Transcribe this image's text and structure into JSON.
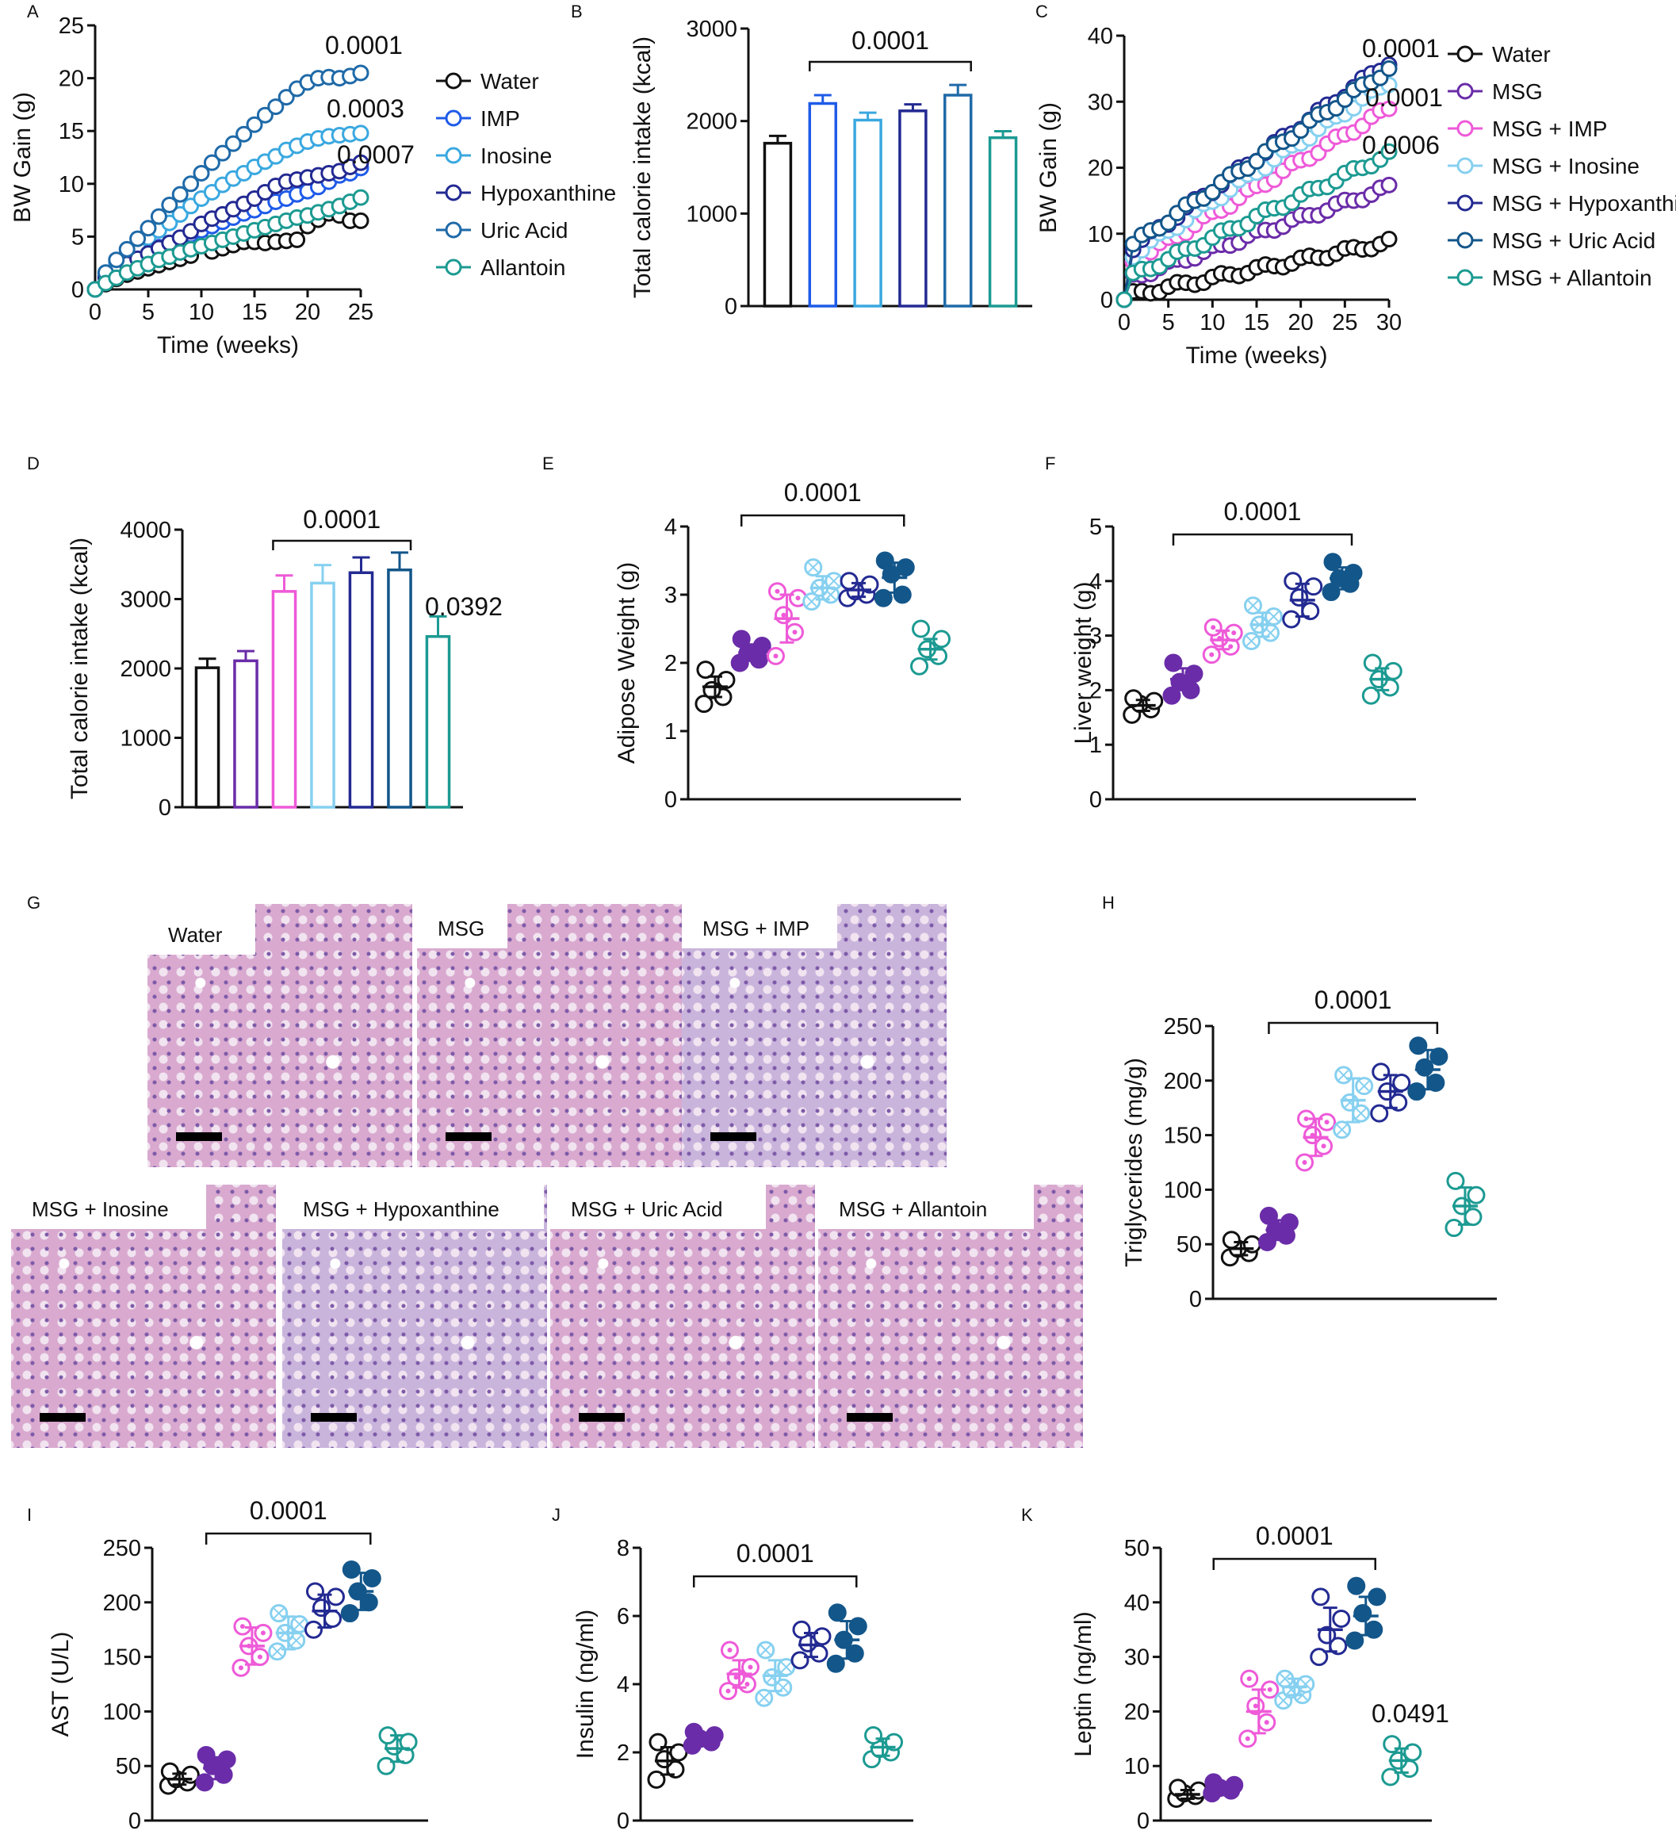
{
  "colors": {
    "water": "#111111",
    "imp": "#1f5be8",
    "inosine": "#3aa8e0",
    "hypoxanthine": "#232a92",
    "uric_acid": "#1f6aa8",
    "allantoin": "#1c9a92",
    "msg": "#6a2ca8",
    "msg_imp": "#ee5ad8",
    "msg_inosine": "#86d0f0",
    "msg_hypoxanthine": "#232a92",
    "msg_uric_acid": "#13568a",
    "msg_allantoin": "#1c9a92"
  },
  "panel_letters": [
    "A",
    "B",
    "C",
    "D",
    "E",
    "F",
    "G",
    "H",
    "I",
    "J",
    "K"
  ],
  "histology": {
    "panel": "G",
    "images": [
      {
        "label": "Water",
        "hue": "pink"
      },
      {
        "label": "MSG",
        "hue": "pink"
      },
      {
        "label": "MSG + IMP",
        "hue": "lavender"
      },
      {
        "label": "MSG + Inosine",
        "hue": "pink"
      },
      {
        "label": "MSG + Hypoxanthine",
        "hue": "lavender"
      },
      {
        "label": "MSG + Uric Acid",
        "hue": "pink"
      },
      {
        "label": "MSG + Allantoin",
        "hue": "pink"
      }
    ]
  },
  "chart_data": [
    {
      "panel": "A",
      "type": "line",
      "xlabel": "Time (weeks)",
      "ylabel": "BW Gain (g)",
      "xlim": [
        0,
        25
      ],
      "ylim": [
        0,
        25
      ],
      "xticks": [
        0,
        5,
        10,
        15,
        20,
        25
      ],
      "yticks": [
        0,
        5,
        10,
        15,
        20,
        25
      ],
      "x": [
        0,
        1,
        2,
        3,
        4,
        5,
        6,
        7,
        8,
        9,
        10,
        11,
        12,
        13,
        14,
        15,
        16,
        17,
        18,
        19,
        20,
        21,
        22,
        23,
        24,
        25
      ],
      "series": [
        {
          "name": "Water",
          "color_key": "water",
          "values": [
            0,
            0.5,
            1.0,
            1.4,
            1.7,
            2.0,
            2.3,
            2.6,
            2.9,
            3.2,
            4.6,
            3.6,
            3.9,
            4.2,
            4.5,
            4.5,
            4.4,
            4.5,
            4.6,
            4.7,
            6.0,
            6.6,
            7.2,
            7.0,
            6.5,
            6.5
          ]
        },
        {
          "name": "IMP",
          "color_key": "imp",
          "values": [
            0,
            1.2,
            2.0,
            2.6,
            3.1,
            3.5,
            4.0,
            4.4,
            4.8,
            5.2,
            5.6,
            6.0,
            6.4,
            6.8,
            7.2,
            7.5,
            7.9,
            8.3,
            8.6,
            9.0,
            9.3,
            9.7,
            10.2,
            10.8,
            11.0,
            11.5
          ]
        },
        {
          "name": "Inosine",
          "color_key": "inosine",
          "values": [
            0,
            1.5,
            2.4,
            3.3,
            4.1,
            4.9,
            5.6,
            6.3,
            7.1,
            7.9,
            8.6,
            9.2,
            9.9,
            10.5,
            11.0,
            11.6,
            12.1,
            12.6,
            13.2,
            13.6,
            14.0,
            14.3,
            14.5,
            14.6,
            14.7,
            14.8
          ]
        },
        {
          "name": "Hypoxanthine",
          "color_key": "hypoxanthine",
          "values": [
            0,
            1.1,
            1.8,
            2.4,
            2.9,
            3.4,
            3.9,
            4.4,
            4.9,
            5.5,
            6.2,
            6.7,
            7.1,
            7.6,
            8.1,
            8.6,
            9.2,
            9.8,
            10.2,
            10.4,
            10.6,
            10.8,
            11.0,
            11.2,
            11.6,
            12.0
          ]
        },
        {
          "name": "Uric Acid",
          "color_key": "uric_acid",
          "values": [
            0,
            1.6,
            2.8,
            3.8,
            4.8,
            5.8,
            6.9,
            8.0,
            9.0,
            10.0,
            11.0,
            12.0,
            12.9,
            13.8,
            14.7,
            15.6,
            16.5,
            17.3,
            18.2,
            19.0,
            19.6,
            20.0,
            20.1,
            20.0,
            20.2,
            20.5
          ]
        },
        {
          "name": "Allantoin",
          "color_key": "allantoin",
          "values": [
            0,
            0.6,
            1.1,
            1.6,
            2.0,
            2.4,
            2.8,
            3.1,
            3.5,
            3.8,
            4.1,
            4.4,
            4.7,
            5.0,
            5.3,
            5.6,
            5.9,
            6.2,
            6.5,
            6.8,
            7.0,
            7.3,
            7.6,
            7.9,
            8.3,
            8.7
          ]
        }
      ],
      "annotations": [
        "0.0001",
        "0.0003",
        "0.0007"
      ]
    },
    {
      "panel": "B",
      "type": "bar",
      "ylabel": "Total calorie intake (kcal)",
      "ylim": [
        0,
        3000
      ],
      "yticks": [
        0,
        1000,
        2000,
        3000
      ],
      "categories": [
        "Water",
        "IMP",
        "Inosine",
        "Hypoxanthine",
        "Uric Acid",
        "Allantoin"
      ],
      "values": [
        1760,
        2190,
        2010,
        2110,
        2280,
        1820
      ],
      "errors": [
        80,
        90,
        80,
        70,
        110,
        70
      ],
      "bracket": {
        "from": 1,
        "to": 4,
        "label": "0.0001"
      }
    },
    {
      "panel": "C",
      "type": "line",
      "xlabel": "Time (weeks)",
      "ylabel": "BW Gain (g)",
      "xlim": [
        0,
        30
      ],
      "ylim": [
        0,
        40
      ],
      "xticks": [
        0,
        5,
        10,
        15,
        20,
        25,
        30
      ],
      "yticks": [
        0,
        10,
        20,
        30,
        40
      ],
      "series": [
        {
          "name": "Water",
          "color_key": "water",
          "start": 0.5,
          "end": 8.7
        },
        {
          "name": "MSG",
          "color_key": "msg",
          "start": 3,
          "end": 17
        },
        {
          "name": "MSG + IMP",
          "color_key": "msg_imp",
          "start": 5,
          "end": 29
        },
        {
          "name": "MSG + Inosine",
          "color_key": "msg_inosine",
          "start": 6,
          "end": 33
        },
        {
          "name": "MSG + Hypoxanthine",
          "color_key": "msg_hypoxanthine",
          "start": 7,
          "end": 36
        },
        {
          "name": "MSG + Uric Acid",
          "color_key": "msg_uric_acid",
          "start": 7.5,
          "end": 35
        },
        {
          "name": "MSG + Allantoin",
          "color_key": "msg_allantoin",
          "start": 3,
          "end": 22
        }
      ],
      "annotations": [
        "0.0001",
        "0.0001",
        "0.0006"
      ]
    },
    {
      "panel": "D",
      "type": "bar",
      "ylabel": "Total calorie intake (kcal)",
      "ylim": [
        0,
        4000
      ],
      "yticks": [
        0,
        1000,
        2000,
        3000,
        4000
      ],
      "categories": [
        "Water",
        "MSG",
        "MSG + IMP",
        "MSG + Inosine",
        "MSG + Hypoxanthine",
        "MSG + Uric Acid",
        "MSG + Allantoin"
      ],
      "values": [
        2010,
        2110,
        3110,
        3230,
        3380,
        3420,
        2460
      ],
      "errors": [
        130,
        140,
        230,
        260,
        220,
        250,
        290
      ],
      "bracket": {
        "from": 2,
        "to": 5,
        "label": "0.0001"
      },
      "extra_label": "0.0392"
    },
    {
      "panel": "E",
      "type": "scatter",
      "ylabel": "Adipose Weight (g)",
      "ylim": [
        0,
        4
      ],
      "yticks": [
        0,
        1,
        2,
        3,
        4
      ],
      "categories": [
        "Water",
        "MSG",
        "MSG + IMP",
        "MSG + Inosine",
        "MSG + Hypoxanthine",
        "MSG + Uric Acid",
        "MSG + Allantoin"
      ],
      "points": [
        [
          1.4,
          1.5,
          1.6,
          1.75,
          1.9
        ],
        [
          2.0,
          2.05,
          2.15,
          2.25,
          2.35
        ],
        [
          2.1,
          2.45,
          2.7,
          2.95,
          3.05
        ],
        [
          2.9,
          3.0,
          3.1,
          3.2,
          3.4
        ],
        [
          2.95,
          3.0,
          3.05,
          3.15,
          3.2
        ],
        [
          2.95,
          3.0,
          3.3,
          3.4,
          3.5
        ],
        [
          1.95,
          2.1,
          2.2,
          2.35,
          2.5
        ]
      ],
      "means": [
        1.65,
        2.15,
        2.65,
        3.1,
        3.07,
        3.25,
        2.2
      ],
      "sds": [
        0.15,
        0.12,
        0.35,
        0.17,
        0.1,
        0.22,
        0.15
      ],
      "bracket": {
        "from": 1,
        "to": 5,
        "label": "0.0001"
      }
    },
    {
      "panel": "F",
      "type": "scatter",
      "ylabel": "Liver weight (g)",
      "ylim": [
        0,
        5
      ],
      "yticks": [
        0,
        1,
        2,
        3,
        4,
        5
      ],
      "categories": [
        "Water",
        "MSG",
        "MSG + IMP",
        "MSG + Inosine",
        "MSG + Hypoxanthine",
        "MSG + Uric Acid",
        "MSG + Allantoin"
      ],
      "points": [
        [
          1.55,
          1.65,
          1.75,
          1.8,
          1.85
        ],
        [
          1.9,
          2.0,
          2.15,
          2.3,
          2.5
        ],
        [
          2.65,
          2.8,
          2.95,
          3.05,
          3.15
        ],
        [
          2.9,
          3.05,
          3.2,
          3.35,
          3.55
        ],
        [
          3.3,
          3.45,
          3.7,
          3.9,
          4.0
        ],
        [
          3.8,
          3.95,
          4.05,
          4.15,
          4.35
        ],
        [
          1.9,
          2.05,
          2.2,
          2.35,
          2.5
        ]
      ],
      "means": [
        1.72,
        2.2,
        2.92,
        3.2,
        3.65,
        4.05,
        2.2
      ],
      "sds": [
        0.1,
        0.2,
        0.17,
        0.22,
        0.3,
        0.2,
        0.2
      ],
      "bracket": {
        "from": 1,
        "to": 5,
        "label": "0.0001"
      }
    },
    {
      "panel": "H",
      "type": "scatter",
      "ylabel": "Triglycerides (mg/g)",
      "ylim": [
        0,
        250
      ],
      "yticks": [
        0,
        50,
        100,
        150,
        200,
        250
      ],
      "categories": [
        "Water",
        "MSG",
        "MSG + IMP",
        "MSG + Inosine",
        "MSG + Hypoxanthine",
        "MSG + Uric Acid",
        "MSG + Allantoin"
      ],
      "points": [
        [
          38,
          42,
          46,
          50,
          54
        ],
        [
          52,
          58,
          63,
          70,
          76
        ],
        [
          125,
          140,
          150,
          162,
          165
        ],
        [
          155,
          170,
          180,
          195,
          205
        ],
        [
          170,
          180,
          190,
          198,
          208
        ],
        [
          190,
          198,
          212,
          222,
          232
        ],
        [
          65,
          75,
          85,
          95,
          108
        ]
      ],
      "means": [
        46,
        63,
        148,
        182,
        190,
        210,
        85
      ],
      "sds": [
        6,
        9,
        17,
        20,
        15,
        18,
        17
      ],
      "bracket": {
        "from": 1,
        "to": 5,
        "label": "0.0001"
      }
    },
    {
      "panel": "I",
      "type": "scatter",
      "ylabel": "AST (U/L)",
      "ylim": [
        0,
        250
      ],
      "yticks": [
        0,
        50,
        100,
        150,
        200,
        250
      ],
      "categories": [
        "Water",
        "MSG",
        "MSG + IMP",
        "MSG + Inosine",
        "MSG + Hypoxanthine",
        "MSG + Uric Acid",
        "MSG + Allantoin"
      ],
      "points": [
        [
          32,
          35,
          38,
          42,
          45
        ],
        [
          35,
          42,
          50,
          56,
          60
        ],
        [
          140,
          150,
          160,
          172,
          178
        ],
        [
          155,
          165,
          172,
          180,
          190
        ],
        [
          175,
          185,
          195,
          205,
          210
        ],
        [
          190,
          200,
          210,
          222,
          230
        ],
        [
          50,
          60,
          68,
          72,
          78
        ]
      ],
      "means": [
        38,
        48,
        160,
        172,
        192,
        210,
        66
      ],
      "sds": [
        5,
        10,
        17,
        15,
        15,
        17,
        12
      ],
      "bracket": {
        "from": 1,
        "to": 5,
        "label": "0.0001"
      }
    },
    {
      "panel": "J",
      "type": "scatter",
      "ylabel": "Insulin (ng/ml)",
      "ylim": [
        0,
        8
      ],
      "yticks": [
        0,
        2,
        4,
        6,
        8
      ],
      "categories": [
        "Water",
        "MSG",
        "MSG + IMP",
        "MSG + Inosine",
        "MSG + Hypoxanthine",
        "MSG + Uric Acid",
        "MSG + Allantoin"
      ],
      "points": [
        [
          1.2,
          1.5,
          1.8,
          2.0,
          2.3
        ],
        [
          2.2,
          2.3,
          2.4,
          2.5,
          2.6
        ],
        [
          3.8,
          4.0,
          4.2,
          4.5,
          5.0
        ],
        [
          3.6,
          3.9,
          4.2,
          4.5,
          5.0
        ],
        [
          4.7,
          4.9,
          5.2,
          5.4,
          5.6
        ],
        [
          4.6,
          4.9,
          5.3,
          5.7,
          6.1
        ],
        [
          1.8,
          2.0,
          2.1,
          2.3,
          2.5
        ]
      ],
      "means": [
        1.75,
        2.4,
        4.3,
        4.25,
        5.15,
        5.3,
        2.15
      ],
      "sds": [
        0.4,
        0.15,
        0.4,
        0.45,
        0.35,
        0.55,
        0.25
      ],
      "bracket": {
        "from": 1,
        "to": 5,
        "label": "0.0001"
      }
    },
    {
      "panel": "K",
      "type": "scatter",
      "ylabel": "Leptin (ng/ml)",
      "ylim": [
        0,
        50
      ],
      "yticks": [
        0,
        10,
        20,
        30,
        40,
        50
      ],
      "categories": [
        "Water",
        "MSG",
        "MSG + IMP",
        "MSG + Inosine",
        "MSG + Hypoxanthine",
        "MSG + Uric Acid",
        "MSG + Allantoin"
      ],
      "points": [
        [
          4,
          4.5,
          5,
          5.5,
          6
        ],
        [
          5,
          5.5,
          6,
          6.5,
          7
        ],
        [
          15,
          18,
          21,
          24,
          26
        ],
        [
          22,
          23,
          24,
          25,
          26
        ],
        [
          30,
          32,
          34,
          37,
          41
        ],
        [
          33,
          35,
          38,
          41,
          43
        ],
        [
          8,
          9.5,
          11,
          12.5,
          14
        ]
      ],
      "means": [
        4.8,
        6,
        20,
        24.5,
        35,
        37.5,
        11
      ],
      "sds": [
        0.8,
        0.8,
        4,
        1.5,
        4,
        3.5,
        2.2
      ],
      "bracket": {
        "from": 1,
        "to": 5,
        "label": "0.0001"
      },
      "extra_label": "0.0491"
    }
  ]
}
